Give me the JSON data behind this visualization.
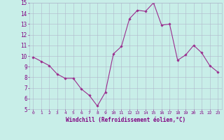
{
  "x": [
    0,
    1,
    2,
    3,
    4,
    5,
    6,
    7,
    8,
    9,
    10,
    11,
    12,
    13,
    14,
    15,
    16,
    17,
    18,
    19,
    20,
    21,
    22,
    23
  ],
  "y": [
    9.9,
    9.5,
    9.1,
    8.3,
    7.9,
    7.9,
    6.9,
    6.3,
    5.3,
    6.6,
    10.2,
    10.9,
    13.5,
    14.3,
    14.2,
    15.0,
    12.9,
    13.0,
    9.6,
    10.1,
    11.0,
    10.3,
    9.1,
    8.5
  ],
  "line_color": "#9B2D8E",
  "marker": "D",
  "markersize": 1.8,
  "linewidth": 0.8,
  "xlabel": "Windchill (Refroidissement éolien,°C)",
  "xlabel_fontsize": 5.5,
  "ylim": [
    5,
    15
  ],
  "xlim": [
    -0.5,
    23.5
  ],
  "yticks": [
    5,
    6,
    7,
    8,
    9,
    10,
    11,
    12,
    13,
    14,
    15
  ],
  "xticks": [
    0,
    1,
    2,
    3,
    4,
    5,
    6,
    7,
    8,
    9,
    10,
    11,
    12,
    13,
    14,
    15,
    16,
    17,
    18,
    19,
    20,
    21,
    22,
    23
  ],
  "xtick_fontsize": 4.5,
  "ytick_fontsize": 5.5,
  "bg_color": "#C8EEE8",
  "grid_color": "#B0B8CC",
  "grid_linewidth": 0.4,
  "line_label_color": "#800080"
}
